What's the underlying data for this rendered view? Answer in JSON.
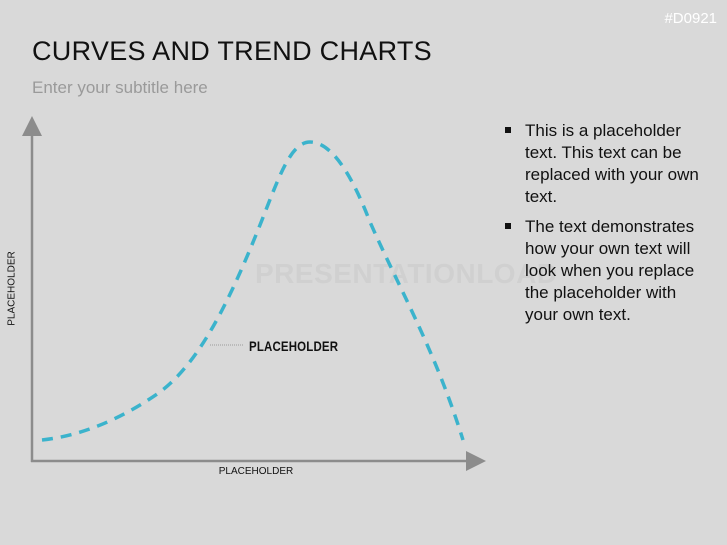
{
  "slide": {
    "code": "#D0921",
    "title": "CURVES AND TREND CHARTS",
    "subtitle": "Enter your subtitle here",
    "watermark": "PRESENTATIONLOAD"
  },
  "diagram": {
    "y_axis_label": "PLACEHOLDER",
    "x_axis_label": "PLACEHOLDER",
    "callout_label": "PLACEHOLDER",
    "curve_color": "#3bb3cc",
    "axis_color": "#8c8c8c",
    "curve_style": "dashed bell curve"
  },
  "bullets": [
    "This is a placeholder text. This text can be replaced with your own text.",
    "The text demonstrates how your own text will look when you replace the placeholder with your own text."
  ]
}
